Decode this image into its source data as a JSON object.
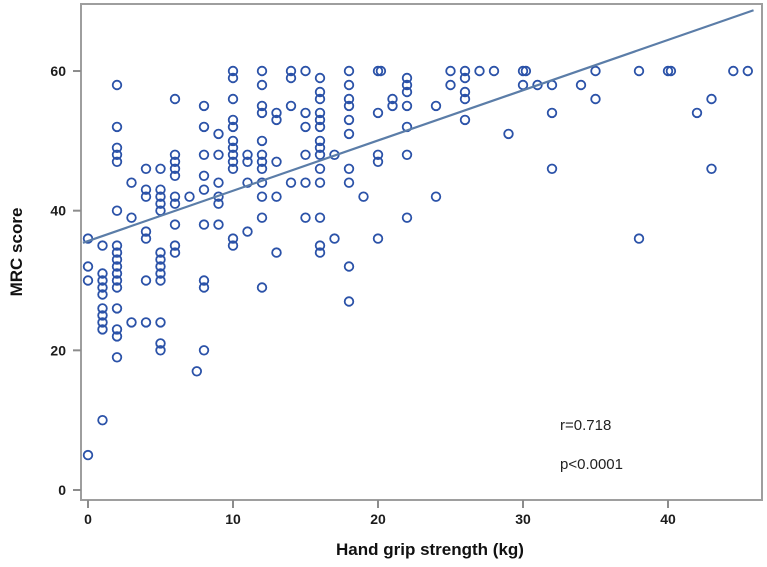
{
  "figure": {
    "xlabel": "Hand grip strength (kg)",
    "ylabel": "MRC score",
    "annotation_r": "r=0.718",
    "annotation_p": "p<0.0001"
  },
  "chart_data": {
    "type": "scatter",
    "title": "",
    "xlabel": "Hand grip strength (kg)",
    "ylabel": "MRC score",
    "xlim": [
      -0.5,
      46.5
    ],
    "ylim": [
      -1.5,
      69.5
    ],
    "xticks": [
      0,
      10,
      20,
      30,
      40
    ],
    "yticks": [
      0,
      20,
      40,
      60
    ],
    "grid": false,
    "legend": "none",
    "marker": "open-circle",
    "annotations": [
      {
        "text": "r=0.718",
        "x": 32.5,
        "y": 9.5
      },
      {
        "text": "p<0.0001",
        "x": 32.5,
        "y": 4.0
      }
    ],
    "regression_line": {
      "x1": -0.35,
      "y1": 35.4,
      "x2": 45.9,
      "y2": 68.7
    },
    "stats": {
      "r": 0.718,
      "p": "<0.0001"
    },
    "colors": {
      "point_stroke": "#2b52a8",
      "line_stroke": "#5b7da8",
      "plot_border": "#9e9e9e",
      "tick_mark": "#8c8c8c",
      "text": "#1c1c1c",
      "background": "#ffffff"
    },
    "points": [
      [
        0,
        36
      ],
      [
        0,
        32
      ],
      [
        0,
        30
      ],
      [
        0,
        5
      ],
      [
        1,
        35
      ],
      [
        1,
        31
      ],
      [
        1,
        30
      ],
      [
        1,
        29
      ],
      [
        1,
        28
      ],
      [
        1,
        26
      ],
      [
        1,
        25
      ],
      [
        1,
        24
      ],
      [
        1,
        23
      ],
      [
        1,
        10
      ],
      [
        2,
        58
      ],
      [
        2,
        52
      ],
      [
        2,
        49
      ],
      [
        2,
        48
      ],
      [
        2,
        47
      ],
      [
        2,
        40
      ],
      [
        2,
        35
      ],
      [
        2,
        34
      ],
      [
        2,
        33
      ],
      [
        2,
        32
      ],
      [
        2,
        31
      ],
      [
        2,
        30
      ],
      [
        2,
        29
      ],
      [
        2,
        26
      ],
      [
        2,
        23
      ],
      [
        2,
        22
      ],
      [
        2,
        19
      ],
      [
        3,
        44
      ],
      [
        3,
        39
      ],
      [
        3,
        24
      ],
      [
        4,
        46
      ],
      [
        4,
        43
      ],
      [
        4,
        42
      ],
      [
        4,
        37
      ],
      [
        4,
        36
      ],
      [
        4,
        30
      ],
      [
        4,
        24
      ],
      [
        5,
        46
      ],
      [
        5,
        43
      ],
      [
        5,
        42
      ],
      [
        5,
        41
      ],
      [
        5,
        40
      ],
      [
        5,
        34
      ],
      [
        5,
        33
      ],
      [
        5,
        32
      ],
      [
        5,
        31
      ],
      [
        5,
        30
      ],
      [
        5,
        24
      ],
      [
        5,
        21
      ],
      [
        5,
        20
      ],
      [
        6,
        56
      ],
      [
        6,
        48
      ],
      [
        6,
        47
      ],
      [
        6,
        46
      ],
      [
        6,
        45
      ],
      [
        6,
        42
      ],
      [
        6,
        41
      ],
      [
        6,
        38
      ],
      [
        6,
        35
      ],
      [
        6,
        34
      ],
      [
        7,
        42
      ],
      [
        7.5,
        17
      ],
      [
        8,
        55
      ],
      [
        8,
        52
      ],
      [
        8,
        48
      ],
      [
        8,
        45
      ],
      [
        8,
        43
      ],
      [
        8,
        38
      ],
      [
        8,
        30
      ],
      [
        8,
        29
      ],
      [
        8,
        20
      ],
      [
        9,
        51
      ],
      [
        9,
        48
      ],
      [
        9,
        44
      ],
      [
        9,
        42
      ],
      [
        9,
        41
      ],
      [
        9,
        38
      ],
      [
        10,
        60
      ],
      [
        10,
        59
      ],
      [
        10,
        56
      ],
      [
        10,
        53
      ],
      [
        10,
        52
      ],
      [
        10,
        50
      ],
      [
        10,
        49
      ],
      [
        10,
        48
      ],
      [
        10,
        47
      ],
      [
        10,
        46
      ],
      [
        10,
        36
      ],
      [
        10,
        35
      ],
      [
        11,
        48
      ],
      [
        11,
        47
      ],
      [
        11,
        44
      ],
      [
        11,
        37
      ],
      [
        12,
        60
      ],
      [
        12,
        58
      ],
      [
        12,
        55
      ],
      [
        12,
        54
      ],
      [
        12,
        50
      ],
      [
        12,
        48
      ],
      [
        12,
        47
      ],
      [
        12,
        46
      ],
      [
        12,
        44
      ],
      [
        12,
        42
      ],
      [
        12,
        39
      ],
      [
        12,
        29
      ],
      [
        13,
        54
      ],
      [
        13,
        53
      ],
      [
        13,
        47
      ],
      [
        13,
        42
      ],
      [
        13,
        34
      ],
      [
        14,
        60
      ],
      [
        14,
        59
      ],
      [
        14,
        55
      ],
      [
        14,
        44
      ],
      [
        15,
        60
      ],
      [
        15,
        54
      ],
      [
        15,
        52
      ],
      [
        15,
        48
      ],
      [
        15,
        44
      ],
      [
        15,
        39
      ],
      [
        16,
        59
      ],
      [
        16,
        57
      ],
      [
        16,
        56
      ],
      [
        16,
        54
      ],
      [
        16,
        53
      ],
      [
        16,
        52
      ],
      [
        16,
        50
      ],
      [
        16,
        49
      ],
      [
        16,
        48
      ],
      [
        16,
        46
      ],
      [
        16,
        44
      ],
      [
        16,
        39
      ],
      [
        16,
        35
      ],
      [
        16,
        34
      ],
      [
        17,
        48
      ],
      [
        17,
        36
      ],
      [
        18,
        60
      ],
      [
        18,
        58
      ],
      [
        18,
        56
      ],
      [
        18,
        55
      ],
      [
        18,
        53
      ],
      [
        18,
        51
      ],
      [
        18,
        46
      ],
      [
        18,
        44
      ],
      [
        18,
        32
      ],
      [
        18,
        27
      ],
      [
        19,
        42
      ],
      [
        20,
        60
      ],
      [
        20.2,
        60
      ],
      [
        20,
        54
      ],
      [
        20,
        48
      ],
      [
        20,
        47
      ],
      [
        20,
        36
      ],
      [
        21,
        56
      ],
      [
        21,
        55
      ],
      [
        22,
        59
      ],
      [
        22,
        58
      ],
      [
        22,
        57
      ],
      [
        22,
        55
      ],
      [
        22,
        52
      ],
      [
        22,
        48
      ],
      [
        22,
        39
      ],
      [
        24,
        55
      ],
      [
        24,
        42
      ],
      [
        25,
        60
      ],
      [
        25,
        58
      ],
      [
        26,
        60
      ],
      [
        26,
        59
      ],
      [
        26,
        57
      ],
      [
        26,
        56
      ],
      [
        26,
        53
      ],
      [
        27,
        60
      ],
      [
        28,
        60
      ],
      [
        29,
        51
      ],
      [
        30,
        60
      ],
      [
        30.2,
        60
      ],
      [
        30,
        58
      ],
      [
        31,
        58
      ],
      [
        32,
        58
      ],
      [
        32,
        54
      ],
      [
        32,
        46
      ],
      [
        34,
        58
      ],
      [
        35,
        60
      ],
      [
        35,
        56
      ],
      [
        38,
        60
      ],
      [
        38,
        36
      ],
      [
        40,
        60
      ],
      [
        40.2,
        60
      ],
      [
        42,
        54
      ],
      [
        43,
        56
      ],
      [
        43,
        46
      ],
      [
        44.5,
        60
      ],
      [
        45.5,
        60
      ]
    ]
  }
}
